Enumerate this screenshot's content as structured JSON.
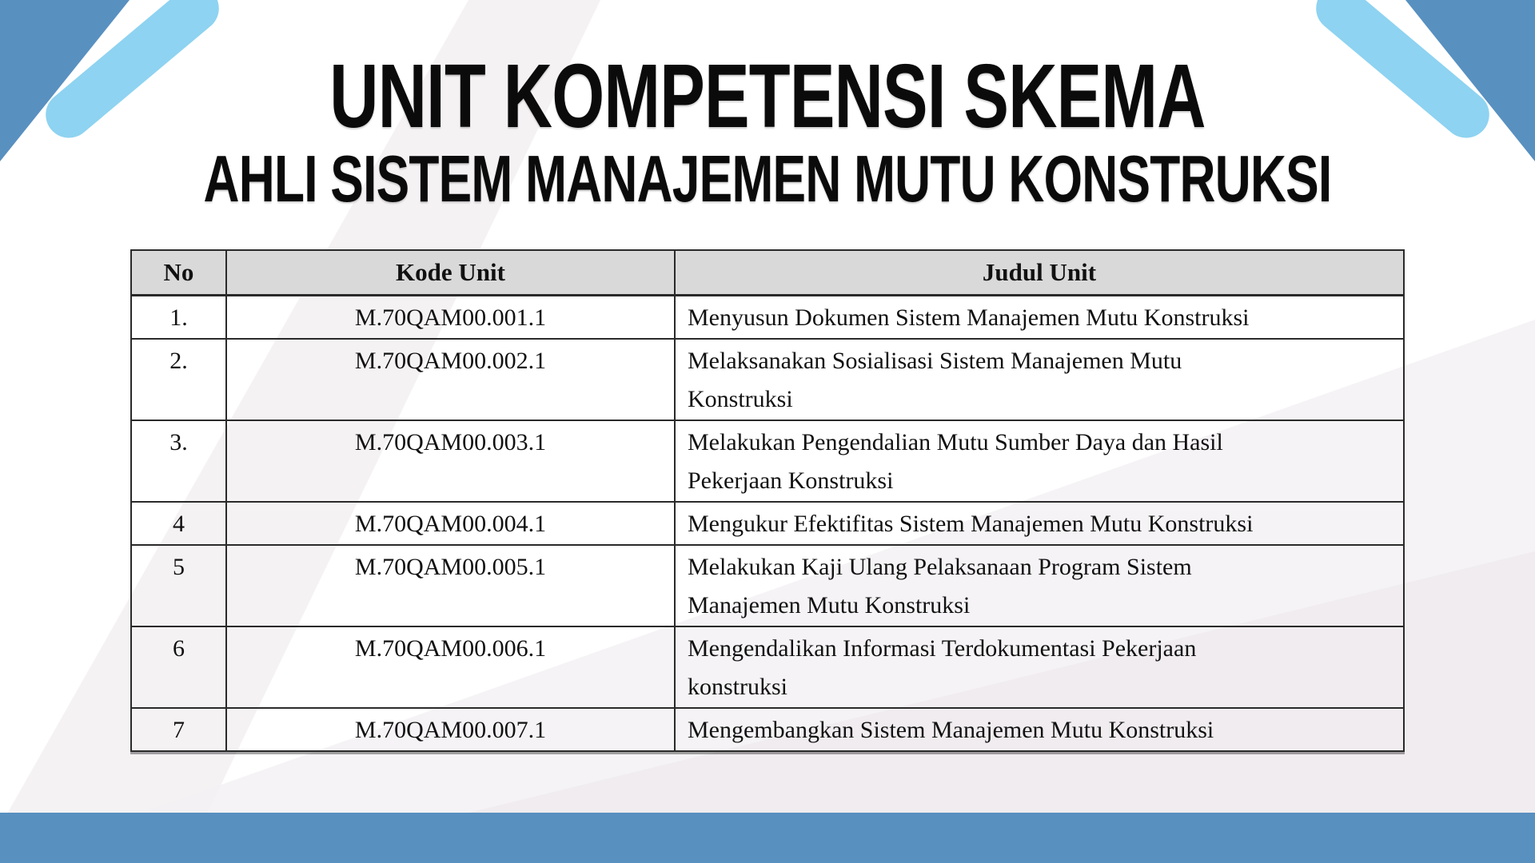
{
  "title": {
    "line1": "UNIT KOMPETENSI SKEMA",
    "line2": "AHLI SISTEM MANAJEMEN MUTU KONSTRUKSI"
  },
  "table": {
    "headers": [
      "No",
      "Kode Unit",
      "Judul Unit"
    ],
    "rows": [
      {
        "no": "1.",
        "kode": "M.70QAM00.001.1",
        "judul": "Menyusun Dokumen Sistem Manajemen Mutu Konstruksi"
      },
      {
        "no": "2.",
        "kode": "M.70QAM00.002.1",
        "judul": "Melaksanakan Sosialisasi Sistem Manajemen Mutu\nKonstruksi"
      },
      {
        "no": "3.",
        "kode": "M.70QAM00.003.1",
        "judul": "Melakukan Pengendalian Mutu Sumber Daya dan Hasil\nPekerjaan Konstruksi"
      },
      {
        "no": "4",
        "kode": "M.70QAM00.004.1",
        "judul": "Mengukur Efektifitas Sistem Manajemen Mutu Konstruksi"
      },
      {
        "no": "5",
        "kode": "M.70QAM00.005.1",
        "judul": "Melakukan Kaji Ulang Pelaksanaan Program Sistem\nManajemen Mutu Konstruksi"
      },
      {
        "no": "6",
        "kode": "M.70QAM00.006.1",
        "judul": "Mengendalikan Informasi Terdokumentasi Pekerjaan\nkonstruksi"
      },
      {
        "no": "7",
        "kode": "M.70QAM00.007.1",
        "judul": "Mengembangkan Sistem Manajemen Mutu Konstruksi"
      }
    ]
  },
  "colors": {
    "accent_blue": "#5890c0",
    "light_blue": "#8ed3f1",
    "header_gray": "#d9d9d9",
    "title_black": "#0b0b0b"
  }
}
